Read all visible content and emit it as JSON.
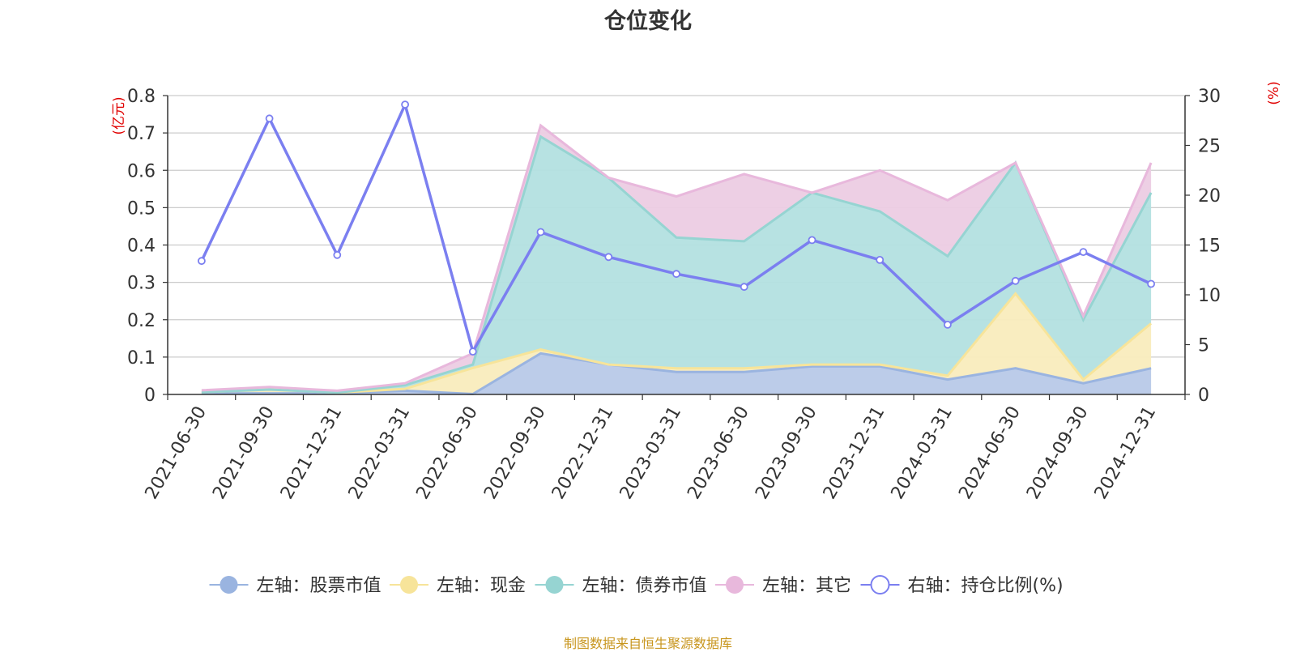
{
  "chart_data": {
    "type": "area",
    "title": "仓位变化",
    "source_note": "制图数据来自恒生聚源数据库",
    "categories": [
      "2021-06-30",
      "2021-09-30",
      "2021-12-31",
      "2022-03-31",
      "2022-06-30",
      "2022-09-30",
      "2022-12-31",
      "2023-03-31",
      "2023-06-30",
      "2023-09-30",
      "2023-12-31",
      "2024-03-31",
      "2024-06-30",
      "2024-09-30",
      "2024-12-31"
    ],
    "left_axis": {
      "unit_label": "(亿元)",
      "ylim": [
        0,
        0.8
      ],
      "ticks": [
        "0",
        "0.1",
        "0.2",
        "0.3",
        "0.4",
        "0.5",
        "0.6",
        "0.7",
        "0.8"
      ]
    },
    "right_axis": {
      "unit_label": "(%)",
      "ylim": [
        0,
        30
      ],
      "ticks": [
        "0",
        "5",
        "10",
        "15",
        "20",
        "25",
        "30"
      ]
    },
    "stacked_series": [
      {
        "name": "左轴：股票市值",
        "fill": "#b8c9e8",
        "line": "#9ab4e0",
        "values": [
          0.003,
          0.003,
          0.003,
          0.01,
          0.001,
          0.11,
          0.08,
          0.06,
          0.06,
          0.075,
          0.075,
          0.04,
          0.07,
          0.03,
          0.07
        ]
      },
      {
        "name": "左轴：现金",
        "fill": "#f9ecbd",
        "line": "#f7e49a",
        "values": [
          0.003,
          0.01,
          0.002,
          0.005,
          0.07,
          0.01,
          0.0,
          0.01,
          0.01,
          0.005,
          0.005,
          0.01,
          0.2,
          0.01,
          0.12
        ]
      },
      {
        "name": "左轴：债券市值",
        "fill": "#b3e0e0",
        "line": "#96d4d2",
        "values": [
          0.0,
          0.0,
          0.0,
          0.01,
          0.009,
          0.57,
          0.5,
          0.35,
          0.34,
          0.46,
          0.41,
          0.32,
          0.35,
          0.16,
          0.35
        ]
      },
      {
        "name": "左轴：其它",
        "fill": "#ecccE3",
        "line": "#e8b8dc",
        "values": [
          0.005,
          0.007,
          0.005,
          0.005,
          0.03,
          0.03,
          0.0,
          0.11,
          0.18,
          0.0,
          0.11,
          0.15,
          0.0,
          0.01,
          0.08
        ]
      }
    ],
    "line_series": {
      "name": "右轴：持仓比例(%)",
      "color": "#7b7ff0",
      "values": [
        13.4,
        27.7,
        14.0,
        29.1,
        4.3,
        16.3,
        13.8,
        12.1,
        10.8,
        15.5,
        13.5,
        7.0,
        11.4,
        14.3,
        11.1
      ]
    },
    "legend_position": "bottom-center",
    "grid": true
  }
}
